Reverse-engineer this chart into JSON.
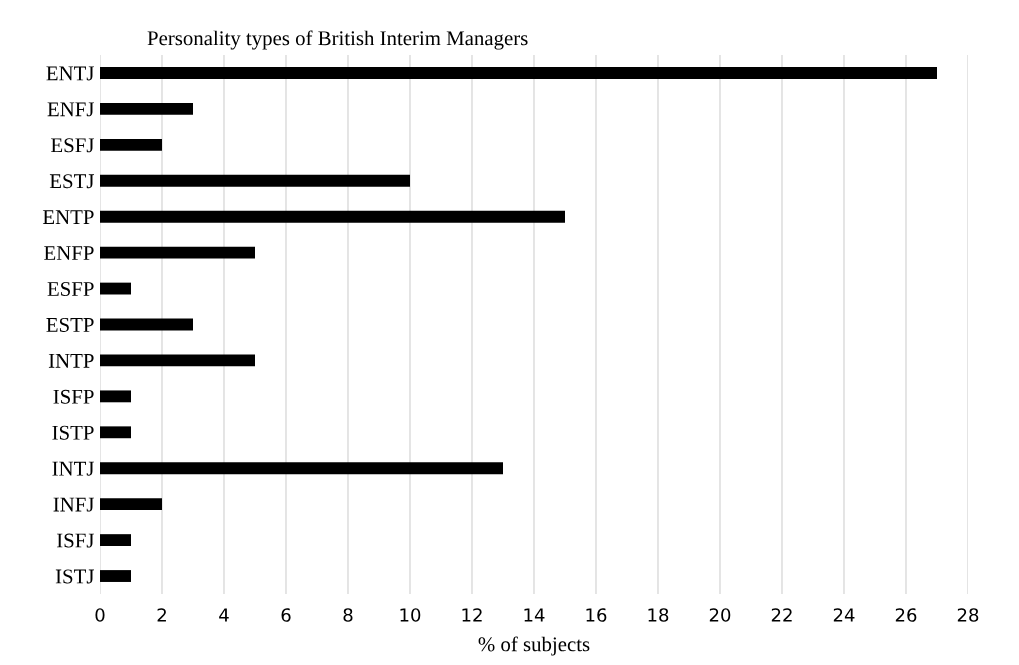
{
  "chart_data": {
    "type": "bar",
    "orientation": "horizontal",
    "title": "Personality types of British Interim Managers",
    "xlabel": "% of subjects",
    "categories": [
      "ENTJ",
      "ENFJ",
      "ESFJ",
      "ESTJ",
      "ENTP",
      "ENFP",
      "ESFP",
      "ESTP",
      "INTP",
      "ISFP",
      "ISTP",
      "INTJ",
      "INFJ",
      "ISFJ",
      "ISTJ"
    ],
    "values": [
      27,
      3,
      2,
      10,
      15,
      5,
      1,
      3,
      5,
      1,
      1,
      13,
      2,
      1,
      1
    ],
    "color": "#000000",
    "xlim": [
      0,
      28
    ],
    "xticks": [
      0,
      2,
      4,
      6,
      8,
      10,
      12,
      14,
      16,
      18,
      20,
      22,
      24,
      26,
      28
    ],
    "grid": "x",
    "legend": false
  }
}
